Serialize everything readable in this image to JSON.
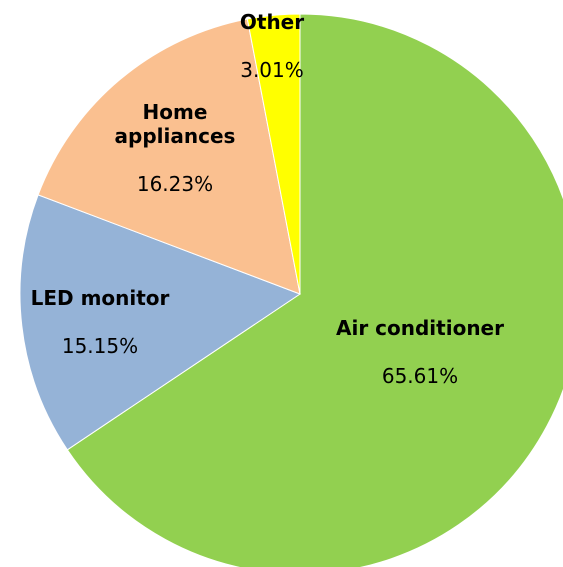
{
  "chart_data": {
    "type": "pie",
    "categories": [
      "Air conditioner",
      "LED monitor",
      "Home appliances",
      "Other"
    ],
    "values": [
      65.61,
      15.15,
      16.23,
      3.01
    ],
    "value_labels": [
      "65.61%",
      "15.15%",
      "16.23%",
      "3.01%"
    ],
    "colors": [
      "#92d050",
      "#95b3d7",
      "#fac090",
      "#ffff00"
    ]
  }
}
